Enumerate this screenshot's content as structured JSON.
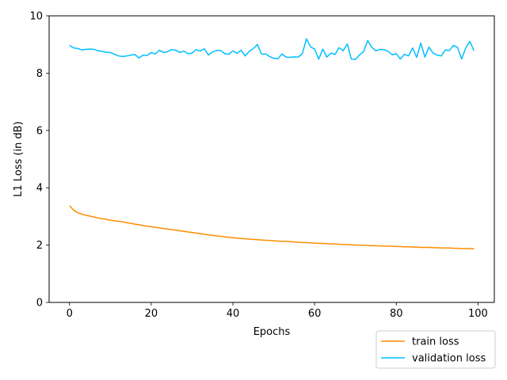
{
  "chart_data": {
    "type": "line",
    "title": "",
    "xlabel": "Epochs",
    "ylabel": "L1 Loss (in dB)",
    "xlim": [
      -5,
      104
    ],
    "ylim": [
      0,
      10
    ],
    "xticks": [
      0,
      20,
      40,
      60,
      80,
      100
    ],
    "yticks": [
      0,
      2,
      4,
      6,
      8,
      10
    ],
    "grid": false,
    "legend_placement": "bottom-right",
    "series": [
      {
        "name": "train loss",
        "color": "#ff8c00",
        "values": [
          3.38,
          3.22,
          3.13,
          3.08,
          3.04,
          3.01,
          2.98,
          2.95,
          2.92,
          2.9,
          2.87,
          2.85,
          2.83,
          2.81,
          2.78,
          2.76,
          2.73,
          2.71,
          2.68,
          2.66,
          2.64,
          2.62,
          2.6,
          2.58,
          2.56,
          2.54,
          2.52,
          2.5,
          2.48,
          2.46,
          2.44,
          2.42,
          2.4,
          2.38,
          2.36,
          2.34,
          2.32,
          2.31,
          2.29,
          2.27,
          2.26,
          2.24,
          2.23,
          2.22,
          2.21,
          2.2,
          2.19,
          2.18,
          2.17,
          2.16,
          2.15,
          2.14,
          2.13,
          2.13,
          2.12,
          2.11,
          2.1,
          2.09,
          2.09,
          2.08,
          2.07,
          2.06,
          2.06,
          2.05,
          2.04,
          2.04,
          2.03,
          2.02,
          2.02,
          2.01,
          2.0,
          2.0,
          1.99,
          1.99,
          1.98,
          1.98,
          1.97,
          1.97,
          1.96,
          1.96,
          1.95,
          1.95,
          1.94,
          1.94,
          1.93,
          1.93,
          1.92,
          1.92,
          1.92,
          1.91,
          1.91,
          1.9,
          1.9,
          1.9,
          1.89,
          1.89,
          1.88,
          1.88,
          1.88,
          1.87
        ]
      },
      {
        "name": "validation loss",
        "color": "#00bfff",
        "values": [
          8.97,
          8.88,
          8.86,
          8.81,
          8.83,
          8.84,
          8.83,
          8.78,
          8.76,
          8.73,
          8.72,
          8.66,
          8.6,
          8.58,
          8.6,
          8.63,
          8.65,
          8.53,
          8.63,
          8.62,
          8.72,
          8.67,
          8.8,
          8.72,
          8.75,
          8.82,
          8.8,
          8.72,
          8.77,
          8.68,
          8.7,
          8.82,
          8.77,
          8.85,
          8.63,
          8.74,
          8.79,
          8.79,
          8.68,
          8.66,
          8.78,
          8.69,
          8.8,
          8.6,
          8.76,
          8.86,
          9.0,
          8.66,
          8.67,
          8.58,
          8.52,
          8.5,
          8.67,
          8.56,
          8.55,
          8.57,
          8.56,
          8.68,
          9.2,
          8.92,
          8.84,
          8.49,
          8.84,
          8.56,
          8.7,
          8.65,
          8.89,
          8.78,
          9.02,
          8.49,
          8.48,
          8.64,
          8.75,
          9.14,
          8.9,
          8.78,
          8.83,
          8.82,
          8.76,
          8.64,
          8.68,
          8.49,
          8.66,
          8.6,
          8.88,
          8.55,
          9.05,
          8.56,
          8.91,
          8.7,
          8.63,
          8.6,
          8.81,
          8.79,
          8.97,
          8.9,
          8.49,
          8.88,
          9.11,
          8.79
        ]
      }
    ]
  }
}
